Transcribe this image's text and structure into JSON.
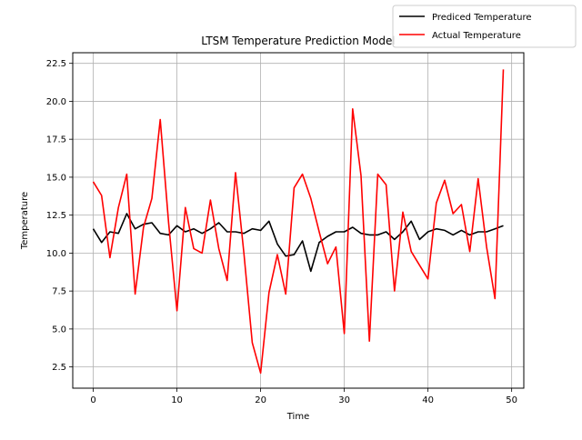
{
  "chart_data": {
    "type": "line",
    "title": "LTSM Temperature Prediction Model",
    "xlabel": "Time",
    "ylabel": "Temperature",
    "xlim": [
      -2.45,
      51.45
    ],
    "ylim": [
      1.1,
      23.2
    ],
    "xticks": [
      0,
      10,
      20,
      30,
      40,
      50
    ],
    "yticks": [
      2.5,
      5.0,
      7.5,
      10.0,
      12.5,
      15.0,
      17.5,
      20.0,
      22.5
    ],
    "xtick_labels": [
      "0",
      "10",
      "20",
      "30",
      "40",
      "50"
    ],
    "ytick_labels": [
      "2.5",
      "5.0",
      "7.5",
      "10.0",
      "12.5",
      "15.0",
      "17.5",
      "20.0",
      "22.5"
    ],
    "grid": true,
    "legend_position": "top-right, outside axes",
    "x": [
      0,
      1,
      2,
      3,
      4,
      5,
      6,
      7,
      8,
      9,
      10,
      11,
      12,
      13,
      14,
      15,
      16,
      17,
      18,
      19,
      20,
      21,
      22,
      23,
      24,
      25,
      26,
      27,
      28,
      29,
      30,
      31,
      32,
      33,
      34,
      35,
      36,
      37,
      38,
      39,
      40,
      41,
      42,
      43,
      44,
      45,
      46,
      47,
      48,
      49
    ],
    "series": [
      {
        "name": "Prediced Temperature",
        "color": "#000000",
        "values": [
          11.6,
          10.7,
          11.4,
          11.3,
          12.6,
          11.6,
          11.9,
          12.0,
          11.3,
          11.2,
          11.8,
          11.4,
          11.6,
          11.3,
          11.6,
          12.0,
          11.4,
          11.4,
          11.3,
          11.6,
          11.5,
          12.1,
          10.6,
          9.8,
          9.9,
          10.8,
          8.8,
          10.7,
          11.1,
          11.4,
          11.4,
          11.7,
          11.3,
          11.2,
          11.2,
          11.4,
          10.9,
          11.4,
          12.1,
          10.9,
          11.4,
          11.6,
          11.5,
          11.2,
          11.5,
          11.2,
          11.4,
          11.4,
          11.6,
          11.8
        ]
      },
      {
        "name": "Actual Temperature",
        "color": "#ff0000",
        "values": [
          14.7,
          13.8,
          9.7,
          13.0,
          15.2,
          7.3,
          11.7,
          13.6,
          18.8,
          12.0,
          6.2,
          13.0,
          10.3,
          10.0,
          13.5,
          10.3,
          8.2,
          15.3,
          10.0,
          4.1,
          2.1,
          7.4,
          9.9,
          7.3,
          14.3,
          15.2,
          13.6,
          11.4,
          9.3,
          10.4,
          4.7,
          19.5,
          15.1,
          4.2,
          15.2,
          14.5,
          7.5,
          12.7,
          10.1,
          9.2,
          8.3,
          13.3,
          14.8,
          12.6,
          13.2,
          10.1,
          14.9,
          10.4,
          7.0,
          22.1
        ]
      }
    ]
  }
}
